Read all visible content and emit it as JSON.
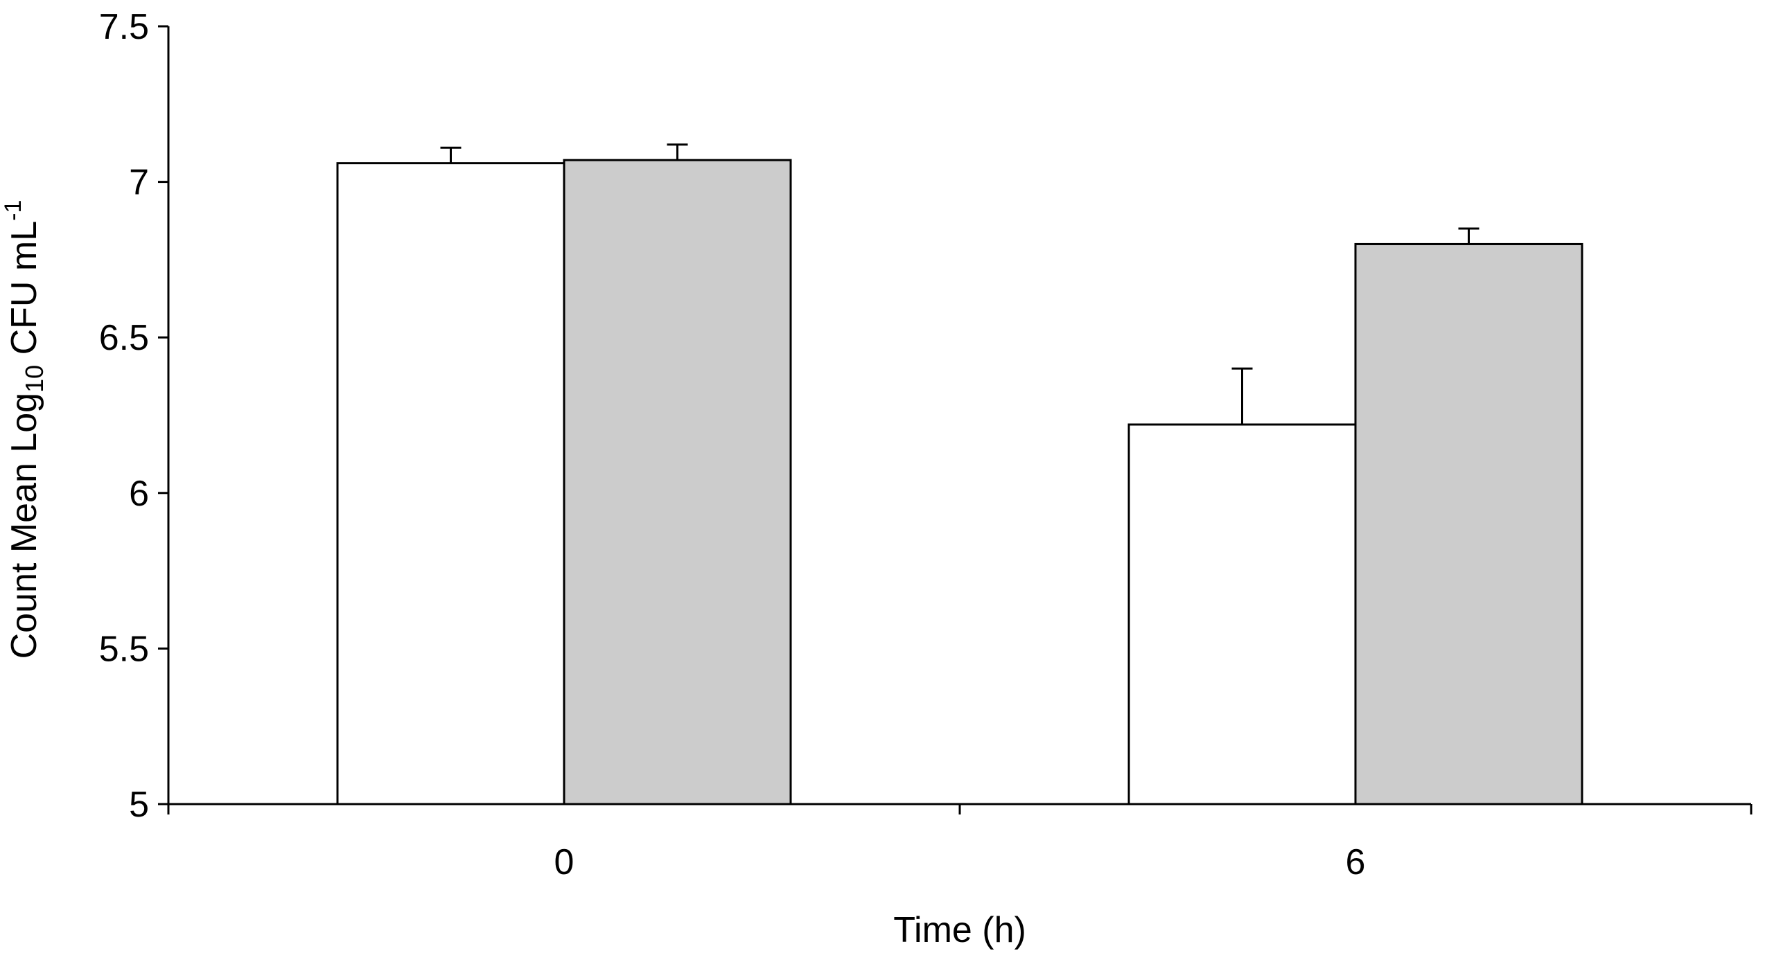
{
  "chart_data": {
    "type": "bar",
    "categories": [
      "0",
      "6"
    ],
    "series": [
      {
        "values": [
          7.06,
          6.22
        ],
        "errors": [
          0.05,
          0.18
        ],
        "color": "#ffffff"
      },
      {
        "values": [
          7.07,
          6.8
        ],
        "errors": [
          0.05,
          0.05
        ],
        "color": "#cccccc"
      }
    ],
    "ylim": [
      5,
      7.5
    ],
    "yticks": [
      5,
      5.5,
      6,
      6.5,
      7,
      7.5
    ],
    "ytick_labels": [
      "5",
      "5.5",
      "6",
      "6.5",
      "7",
      "7.5"
    ],
    "xlabel": "Time (h)",
    "ylabel": {
      "part1": "Count Mean Log",
      "subscript": "10",
      "part2": " CFU mL",
      "superscript": "-1"
    },
    "grid": false,
    "legend": "none"
  }
}
